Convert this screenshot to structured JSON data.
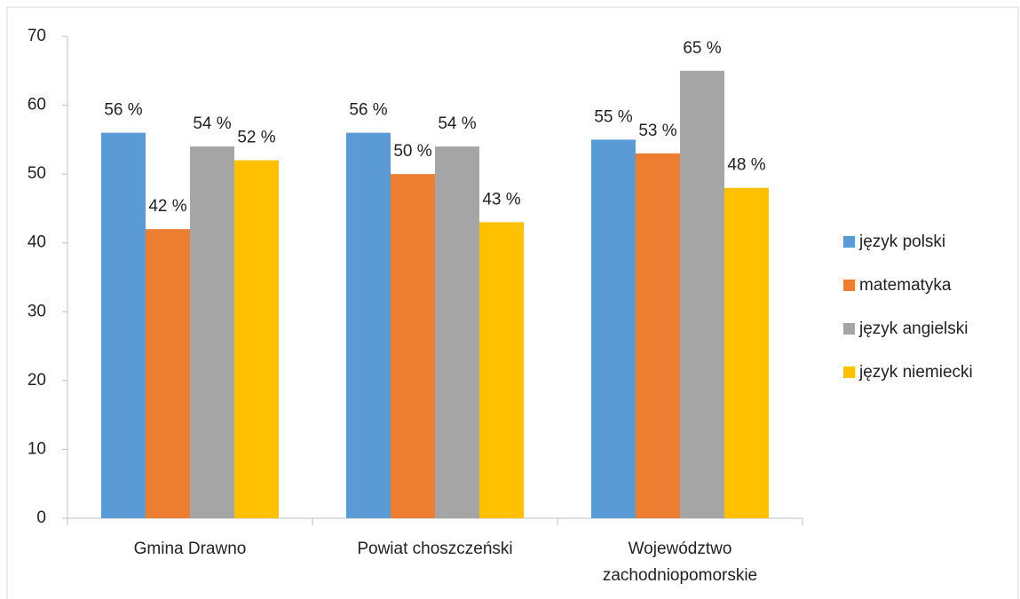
{
  "chart_data": {
    "type": "bar",
    "categories": [
      "Gmina Drawno",
      "Powiat choszczeński",
      "Województwo zachodniopomorskie"
    ],
    "series": [
      {
        "name": "język polski",
        "color": "#5b9bd5",
        "values": [
          56,
          56,
          55
        ],
        "value_labels": [
          "56 %",
          "56 %",
          "55 %"
        ]
      },
      {
        "name": "matematyka",
        "color": "#ed7d31",
        "values": [
          42,
          50,
          53
        ],
        "value_labels": [
          "42 %",
          "50 %",
          "53 %"
        ]
      },
      {
        "name": "język angielski",
        "color": "#a5a5a5",
        "values": [
          54,
          54,
          65
        ],
        "value_labels": [
          "54 %",
          "54 %",
          "65 %"
        ]
      },
      {
        "name": "język niemiecki",
        "color": "#ffc000",
        "values": [
          52,
          43,
          48
        ],
        "value_labels": [
          "52 %",
          "43 %",
          "48 %"
        ]
      }
    ],
    "ylim": [
      0,
      70
    ],
    "yticks": [
      0,
      10,
      20,
      30,
      40,
      50,
      60,
      70
    ],
    "grid": false,
    "legend": "right"
  }
}
